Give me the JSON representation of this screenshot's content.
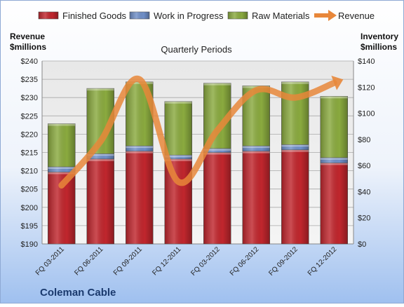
{
  "chart_data": {
    "type": "bar",
    "subtitle": "Quarterly Periods",
    "company": "Coleman Cable",
    "left_axis_label": [
      "Revenue",
      "$millions"
    ],
    "right_axis_label": [
      "Inventory",
      "$millions"
    ],
    "categories": [
      "FQ 03-2011",
      "FQ 06-2011",
      "FQ 09-2011",
      "FQ 12-2011",
      "FQ 03-2012",
      "FQ 06-2012",
      "FQ 09-2012",
      "FQ 12-2012"
    ],
    "stacked_series_axis": "right",
    "series": [
      {
        "name": "Finished Goods",
        "kind": "bar",
        "color": "#c0262d",
        "values": [
          55,
          65,
          71,
          65,
          70,
          71,
          72,
          62
        ]
      },
      {
        "name": "Work in Progress",
        "kind": "bar",
        "color": "#6f8fc8",
        "values": [
          4,
          4,
          4,
          3,
          3,
          4,
          4,
          4
        ]
      },
      {
        "name": "Raw Materials",
        "kind": "bar",
        "color": "#8aaa3f",
        "values": [
          33,
          50,
          49,
          41,
          50,
          46,
          48,
          47
        ]
      },
      {
        "name": "Revenue",
        "kind": "line",
        "axis": "left",
        "color": "#e8873a",
        "values": [
          206,
          218,
          235,
          207,
          221,
          232,
          230,
          234
        ]
      }
    ],
    "left_axis": {
      "min": 190,
      "max": 240,
      "step": 5,
      "prefix": "$"
    },
    "right_axis": {
      "min": 0,
      "max": 140,
      "step": 20,
      "prefix": "$"
    },
    "legend_position": "top",
    "grid": true
  }
}
